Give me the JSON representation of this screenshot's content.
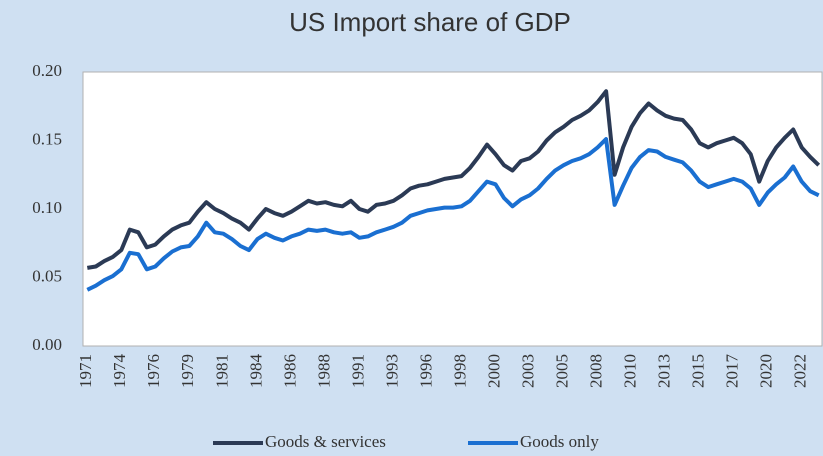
{
  "chart_data": {
    "type": "line",
    "title": "US Import share of GDP",
    "categories": [
      "1971",
      null,
      null,
      null,
      "1974",
      null,
      null,
      null,
      "1976",
      null,
      null,
      null,
      "1979",
      null,
      null,
      null,
      "1981",
      null,
      null,
      null,
      "1984",
      null,
      null,
      null,
      "1986",
      null,
      null,
      null,
      "1988",
      null,
      null,
      null,
      "1991",
      null,
      null,
      null,
      "1993",
      null,
      null,
      null,
      "1996",
      null,
      null,
      null,
      "1998",
      null,
      null,
      null,
      "2000",
      null,
      null,
      null,
      "2003",
      null,
      null,
      null,
      "2005",
      null,
      null,
      null,
      "2008",
      null,
      null,
      null,
      "2010",
      null,
      null,
      null,
      "2013",
      null,
      null,
      null,
      "2015",
      null,
      null,
      null,
      "2017",
      null,
      null,
      null,
      "2020",
      null,
      null,
      null,
      "2022",
      null,
      null
    ],
    "series": [
      {
        "name": "Goods & services",
        "color": "#2b3a55",
        "values": [
          0.057,
          0.058,
          0.062,
          0.065,
          0.07,
          0.085,
          0.083,
          0.072,
          0.074,
          0.08,
          0.085,
          0.088,
          0.09,
          0.098,
          0.105,
          0.1,
          0.097,
          0.093,
          0.09,
          0.085,
          0.093,
          0.1,
          0.097,
          0.095,
          0.098,
          0.102,
          0.106,
          0.104,
          0.105,
          0.103,
          0.102,
          0.106,
          0.1,
          0.098,
          0.103,
          0.104,
          0.106,
          0.11,
          0.115,
          0.117,
          0.118,
          0.12,
          0.122,
          0.123,
          0.124,
          0.13,
          0.138,
          0.147,
          0.14,
          0.132,
          0.128,
          0.135,
          0.137,
          0.142,
          0.15,
          0.156,
          0.16,
          0.165,
          0.168,
          0.172,
          0.178,
          0.186,
          0.125,
          0.145,
          0.16,
          0.17,
          0.177,
          0.172,
          0.168,
          0.166,
          0.165,
          0.158,
          0.148,
          0.145,
          0.148,
          0.15,
          0.152,
          0.148,
          0.14,
          0.12,
          0.135,
          0.145,
          0.152,
          0.158,
          0.145,
          0.138,
          0.132
        ]
      },
      {
        "name": "Goods only",
        "color": "#1a6fd1",
        "values": [
          0.041,
          0.044,
          0.048,
          0.051,
          0.056,
          0.068,
          0.067,
          0.056,
          0.058,
          0.064,
          0.069,
          0.072,
          0.073,
          0.08,
          0.09,
          0.083,
          0.082,
          0.078,
          0.073,
          0.07,
          0.078,
          0.082,
          0.079,
          0.077,
          0.08,
          0.082,
          0.085,
          0.084,
          0.085,
          0.083,
          0.082,
          0.083,
          0.079,
          0.08,
          0.083,
          0.085,
          0.087,
          0.09,
          0.095,
          0.097,
          0.099,
          0.1,
          0.101,
          0.101,
          0.102,
          0.106,
          0.113,
          0.12,
          0.118,
          0.108,
          0.102,
          0.107,
          0.11,
          0.115,
          0.122,
          0.128,
          0.132,
          0.135,
          0.137,
          0.14,
          0.145,
          0.151,
          0.103,
          0.117,
          0.13,
          0.138,
          0.143,
          0.142,
          0.138,
          0.136,
          0.134,
          0.128,
          0.12,
          0.116,
          0.118,
          0.12,
          0.122,
          0.12,
          0.115,
          0.103,
          0.112,
          0.118,
          0.123,
          0.131,
          0.12,
          0.113,
          0.11
        ]
      }
    ],
    "ylim": [
      0,
      0.2
    ],
    "yticks": [
      {
        "value": 0,
        "label": "0.00"
      },
      {
        "value": 0.05,
        "label": "0.05"
      },
      {
        "value": 0.1,
        "label": "0.10"
      },
      {
        "value": 0.15,
        "label": "0.15"
      },
      {
        "value": 0.2,
        "label": "0.20"
      }
    ],
    "legend": "bottom"
  }
}
